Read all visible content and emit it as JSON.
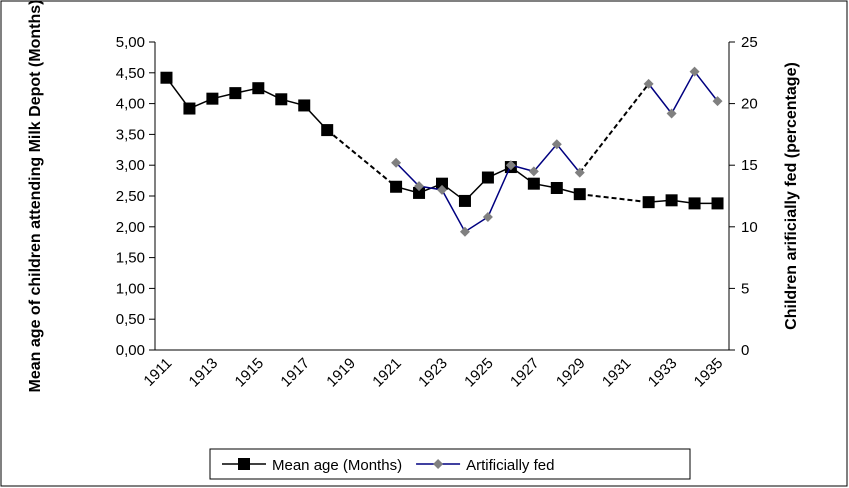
{
  "chart_data": {
    "type": "line",
    "y_label": "Mean age of children attending Milk Depot (Months)",
    "y2_label": "Children arificially fed (percentage)",
    "categories": [
      "1911",
      null,
      "1913",
      null,
      "1915",
      null,
      "1917",
      null,
      "1919",
      null,
      "1921",
      null,
      "1923",
      null,
      "1925",
      null,
      "1927",
      null,
      "1929",
      null,
      "1931",
      null,
      "1933",
      null,
      "1935"
    ],
    "series": [
      {
        "name": "Mean age (Months)",
        "color": "#000000",
        "marker": "square",
        "values": [
          4.42,
          3.92,
          4.08,
          4.17,
          4.25,
          4.07,
          3.97,
          3.57,
          null,
          null,
          2.65,
          2.55,
          2.7,
          2.42,
          2.8,
          2.97,
          2.7,
          2.63,
          2.53,
          null,
          null,
          2.4,
          2.43,
          2.38,
          2.38
        ]
      },
      {
        "name": "Artificially fed",
        "color": "#000080",
        "marker_color": "#808080",
        "marker": "diamond",
        "axis": "y2",
        "values": [
          null,
          null,
          null,
          null,
          null,
          null,
          null,
          null,
          null,
          null,
          15.2,
          13.3,
          13.0,
          9.6,
          10.8,
          15.0,
          14.5,
          16.7,
          14.4,
          null,
          null,
          21.6,
          19.2,
          22.6,
          20.2
        ]
      }
    ],
    "ylim": [
      0,
      5
    ],
    "yticks": [
      {
        "value": 0,
        "label": "0,00"
      },
      {
        "value": 0.5,
        "label": "0,50"
      },
      {
        "value": 1,
        "label": "1,00"
      },
      {
        "value": 1.5,
        "label": "1,50"
      },
      {
        "value": 2,
        "label": "2,00"
      },
      {
        "value": 2.5,
        "label": "2,50"
      },
      {
        "value": 3,
        "label": "3,00"
      },
      {
        "value": 3.5,
        "label": "3,50"
      },
      {
        "value": 4,
        "label": "4,00"
      },
      {
        "value": 4.5,
        "label": "4,50"
      },
      {
        "value": 5,
        "label": "5,00"
      }
    ],
    "y2lim": [
      0,
      25
    ],
    "y2ticks": [
      0,
      5,
      10,
      15,
      20,
      25
    ],
    "legend": "bottom",
    "grid": false
  }
}
